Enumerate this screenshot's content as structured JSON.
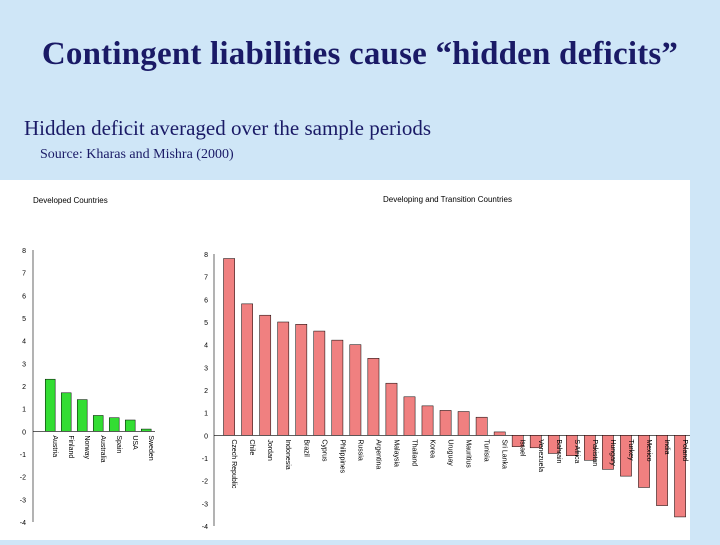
{
  "slide": {
    "title": "Contingent liabilities cause “hidden deficits”",
    "subtitle": "Hidden deficit averaged over the sample periods",
    "source": "Source: Kharas and Mishra (2000)"
  },
  "chart_data": [
    {
      "type": "bar",
      "title": "Developed Countries",
      "categories": [
        "Austria",
        "Finland",
        "Norway",
        "Australia",
        "Spain",
        "USA",
        "Sweden"
      ],
      "values": [
        2.3,
        1.7,
        1.4,
        0.7,
        0.6,
        0.5,
        0.1
      ],
      "ylim": [
        -4,
        8
      ],
      "yticks": [
        8,
        7,
        6,
        5,
        4,
        3,
        2,
        1,
        0,
        -1,
        -2,
        -3,
        -4
      ],
      "color": "#33dd33",
      "grid": false
    },
    {
      "type": "bar",
      "title": "Developing and Transition Countries",
      "categories": [
        "Czech Republic",
        "Chile",
        "Jordan",
        "Indonesia",
        "Brazil",
        "Cyprus",
        "Philippines",
        "Russia",
        "Argentina",
        "Malaysia",
        "Thailand",
        "Korea",
        "Uruguay",
        "Mauritius",
        "Tunisia",
        "Sri Lanka",
        "Israel",
        "Venezuela",
        "Bahrain",
        "S Africa",
        "Pakistan",
        "Hungary",
        "Turkey",
        "Mexico",
        "India",
        "Poland"
      ],
      "values": [
        7.8,
        5.8,
        5.3,
        5.0,
        4.9,
        4.6,
        4.2,
        4.0,
        3.4,
        2.3,
        1.7,
        1.3,
        1.1,
        1.05,
        0.8,
        0.15,
        -0.5,
        -0.55,
        -0.8,
        -0.9,
        -1.1,
        -1.5,
        -1.8,
        -2.3,
        -3.1,
        -3.6
      ],
      "ylim": [
        -4,
        8
      ],
      "yticks": [
        8,
        7,
        6,
        5,
        4,
        3,
        2,
        1,
        0,
        -1,
        -2,
        -3,
        -4
      ],
      "color": "#f08080",
      "grid": false
    }
  ]
}
